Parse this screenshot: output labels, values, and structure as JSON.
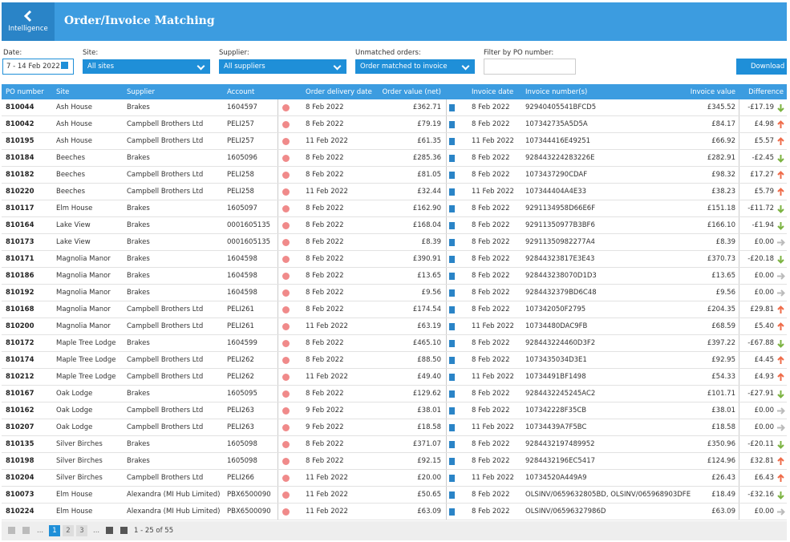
{
  "header": {
    "back_label": "Intelligence",
    "title": "Order/Invoice Matching"
  },
  "filters": {
    "date": {
      "label": "Date:",
      "value": "7 - 14 Feb 2022"
    },
    "site": {
      "label": "Site:",
      "value": "All sites"
    },
    "supplier": {
      "label": "Supplier:",
      "value": "All suppliers"
    },
    "unmatched": {
      "label": "Unmatched orders:",
      "value": "Order matched to invoice"
    },
    "po": {
      "label": "Filter by PO number:"
    },
    "download": "Download"
  },
  "table": {
    "columns": [
      "PO number",
      "Site",
      "Supplier",
      "Account",
      "Order delivery date",
      "Order value (net)",
      "Invoice date",
      "Invoice number(s)",
      "Invoice value",
      "Difference"
    ],
    "rows": [
      [
        "810044",
        "Ash House",
        "Brakes",
        "1604597",
        "8 Feb 2022",
        "£362.71",
        "8 Feb 2022",
        "92940405541BFCD5",
        "£345.52",
        "-£17.19"
      ],
      [
        "810042",
        "Ash House",
        "Campbell Brothers Ltd",
        "PELI257",
        "8 Feb 2022",
        "£79.19",
        "8 Feb 2022",
        "107342735A5D5A",
        "£84.17",
        "£4.98"
      ],
      [
        "810195",
        "Ash House",
        "Campbell Brothers Ltd",
        "PELI257",
        "11 Feb 2022",
        "£61.35",
        "11 Feb 2022",
        "107344416E49251",
        "£66.92",
        "£5.57"
      ],
      [
        "810184",
        "Beeches",
        "Brakes",
        "1605096",
        "8 Feb 2022",
        "£285.36",
        "8 Feb 2022",
        "928443224283226E",
        "£282.91",
        "-£2.45"
      ],
      [
        "810182",
        "Beeches",
        "Campbell Brothers Ltd",
        "PELI258",
        "8 Feb 2022",
        "£81.05",
        "8 Feb 2022",
        "1073437290CDAF",
        "£98.32",
        "£17.27"
      ],
      [
        "810220",
        "Beeches",
        "Campbell Brothers Ltd",
        "PELI258",
        "11 Feb 2022",
        "£32.44",
        "11 Feb 2022",
        "107344404A4E33",
        "£38.23",
        "£5.79"
      ],
      [
        "810117",
        "Elm House",
        "Brakes",
        "1605097",
        "8 Feb 2022",
        "£162.90",
        "8 Feb 2022",
        "9291134958D66E6F",
        "£151.18",
        "-£11.72"
      ],
      [
        "810164",
        "Lake View",
        "Brakes",
        "0001605135",
        "8 Feb 2022",
        "£168.04",
        "8 Feb 2022",
        "92911350977B3BF6",
        "£166.10",
        "-£1.94"
      ],
      [
        "810173",
        "Lake View",
        "Brakes",
        "0001605135",
        "8 Feb 2022",
        "£8.39",
        "8 Feb 2022",
        "92911350982277A4",
        "£8.39",
        "£0.00"
      ],
      [
        "810171",
        "Magnolia Manor",
        "Brakes",
        "1604598",
        "8 Feb 2022",
        "£390.91",
        "8 Feb 2022",
        "92844323817E3E43",
        "£370.73",
        "-£20.18"
      ],
      [
        "810186",
        "Magnolia Manor",
        "Brakes",
        "1604598",
        "8 Feb 2022",
        "£13.65",
        "8 Feb 2022",
        "928443238070D1D3",
        "£13.65",
        "£0.00"
      ],
      [
        "810192",
        "Magnolia Manor",
        "Brakes",
        "1604598",
        "8 Feb 2022",
        "£9.56",
        "8 Feb 2022",
        "9284432379BD6C48",
        "£9.56",
        "£0.00"
      ],
      [
        "810168",
        "Magnolia Manor",
        "Campbell Brothers Ltd",
        "PELI261",
        "8 Feb 2022",
        "£174.54",
        "8 Feb 2022",
        "107342050F2795",
        "£204.35",
        "£29.81"
      ],
      [
        "810200",
        "Magnolia Manor",
        "Campbell Brothers Ltd",
        "PELI261",
        "11 Feb 2022",
        "£63.19",
        "11 Feb 2022",
        "10734480DAC9FB",
        "£68.59",
        "£5.40"
      ],
      [
        "810172",
        "Maple Tree Lodge",
        "Brakes",
        "1604599",
        "8 Feb 2022",
        "£465.10",
        "8 Feb 2022",
        "928443224460D3F2",
        "£397.22",
        "-£67.88"
      ],
      [
        "810174",
        "Maple Tree Lodge",
        "Campbell Brothers Ltd",
        "PELI262",
        "8 Feb 2022",
        "£88.50",
        "8 Feb 2022",
        "1073435034D3E1",
        "£92.95",
        "£4.45"
      ],
      [
        "810212",
        "Maple Tree Lodge",
        "Campbell Brothers Ltd",
        "PELI262",
        "11 Feb 2022",
        "£49.40",
        "11 Feb 2022",
        "10734491BF1498",
        "£54.33",
        "£4.93"
      ],
      [
        "810167",
        "Oak Lodge",
        "Brakes",
        "1605095",
        "8 Feb 2022",
        "£129.62",
        "8 Feb 2022",
        "9284432245245AC2",
        "£101.71",
        "-£27.91"
      ],
      [
        "810162",
        "Oak Lodge",
        "Campbell Brothers Ltd",
        "PELI263",
        "9 Feb 2022",
        "£38.01",
        "8 Feb 2022",
        "107342228F35CB",
        "£38.01",
        "£0.00"
      ],
      [
        "810207",
        "Oak Lodge",
        "Campbell Brothers Ltd",
        "PELI263",
        "9 Feb 2022",
        "£18.58",
        "11 Feb 2022",
        "10734439A7F5BC",
        "£18.58",
        "£0.00"
      ],
      [
        "810135",
        "Silver Birches",
        "Brakes",
        "1605098",
        "8 Feb 2022",
        "£371.07",
        "8 Feb 2022",
        "9284432197489952",
        "£350.96",
        "-£20.11"
      ],
      [
        "810198",
        "Silver Birches",
        "Brakes",
        "1605098",
        "8 Feb 2022",
        "£92.15",
        "8 Feb 2022",
        "9284432196EC5417",
        "£124.96",
        "£32.81"
      ],
      [
        "810204",
        "Silver Birches",
        "Campbell Brothers Ltd",
        "PELI266",
        "11 Feb 2022",
        "£20.00",
        "11 Feb 2022",
        "10734520A449A9",
        "£26.43",
        "£6.43"
      ],
      [
        "810073",
        "Elm House",
        "Alexandra (MI Hub Limited)",
        "PBX6500090",
        "11 Feb 2022",
        "£50.65",
        "8 Feb 2022",
        "OLSINV/0659632805BD, OLSINV/065968903DFE",
        "£18.49",
        "-£32.16"
      ],
      [
        "810224",
        "Elm House",
        "Alexandra (MI Hub Limited)",
        "PBX6500090",
        "11 Feb 2022",
        "£63.09",
        "8 Feb 2022",
        "OLSINV/06596327986D",
        "£63.09",
        "£0.00"
      ]
    ]
  },
  "pager": {
    "ellipsis": "...",
    "pages": [
      "1",
      "2",
      "3"
    ],
    "summary": "1 - 25 of 55"
  }
}
